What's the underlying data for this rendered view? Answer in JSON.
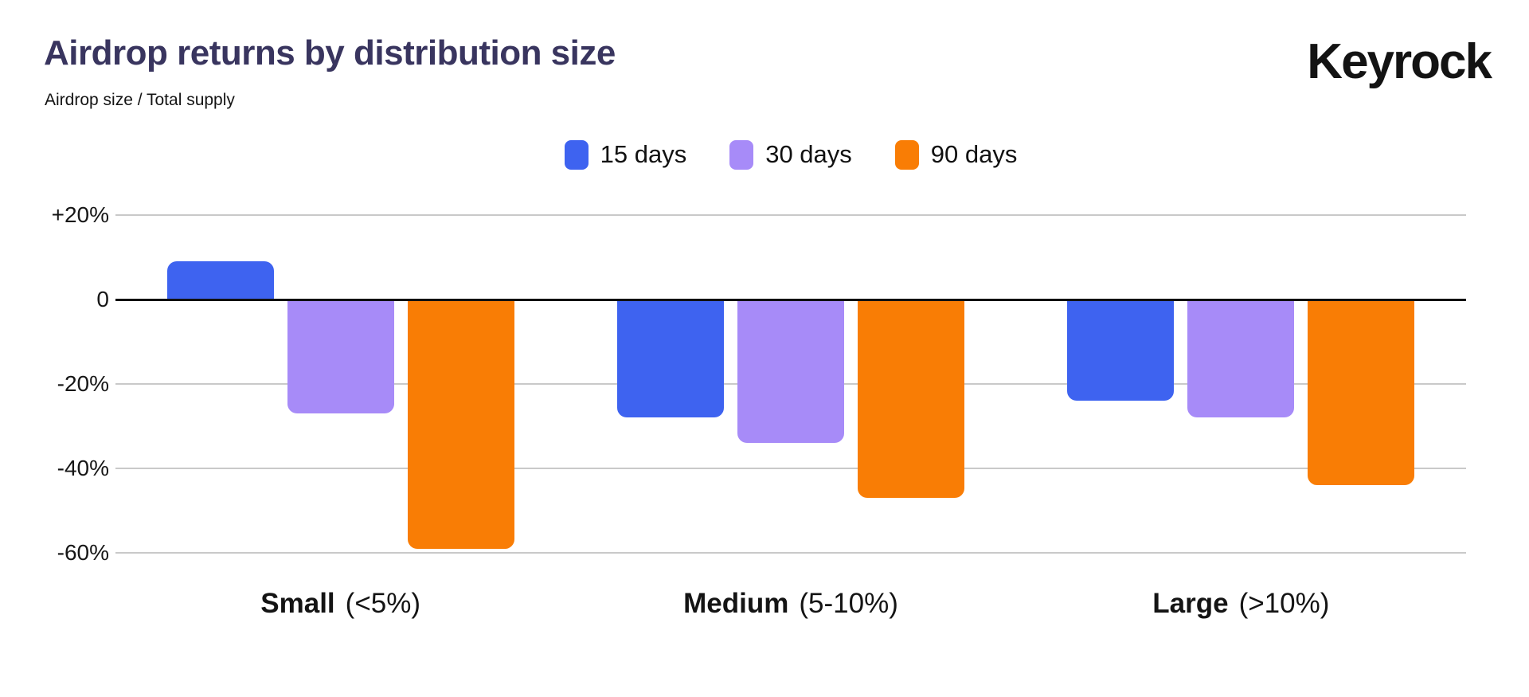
{
  "header": {
    "title": "Airdrop returns by distribution size",
    "subtitle": "Airdrop size / Total supply",
    "brand": "Keyrock"
  },
  "chart_data": {
    "type": "bar",
    "title": "Airdrop returns by distribution size",
    "subtitle": "Airdrop size / Total supply",
    "categories": [
      {
        "name": "Small",
        "qualifier": "(<5%)"
      },
      {
        "name": "Medium",
        "qualifier": "(5-10%)"
      },
      {
        "name": "Large",
        "qualifier": "(>10%)"
      }
    ],
    "series": [
      {
        "name": "15 days",
        "color": "#3E63F0",
        "values": [
          9,
          -28,
          -24
        ]
      },
      {
        "name": "30 days",
        "color": "#A78BF8",
        "values": [
          -27,
          -34,
          -28
        ]
      },
      {
        "name": "90 days",
        "color": "#F97D05",
        "values": [
          -59,
          -47,
          -44
        ]
      }
    ],
    "y_axis": {
      "unit": "%",
      "ticks": [
        "+20%",
        "0",
        "-20%",
        "-40%",
        "-60%"
      ],
      "tick_values": [
        20,
        0,
        -20,
        -40,
        -60
      ]
    },
    "ylim": [
      -60,
      20
    ],
    "grid": true,
    "zero_line": true,
    "legend_position": "top-center",
    "colors": {
      "title": "#39355F",
      "gridline": "#c9c9c9",
      "zero_line": "#101010",
      "text": "#141414"
    }
  }
}
